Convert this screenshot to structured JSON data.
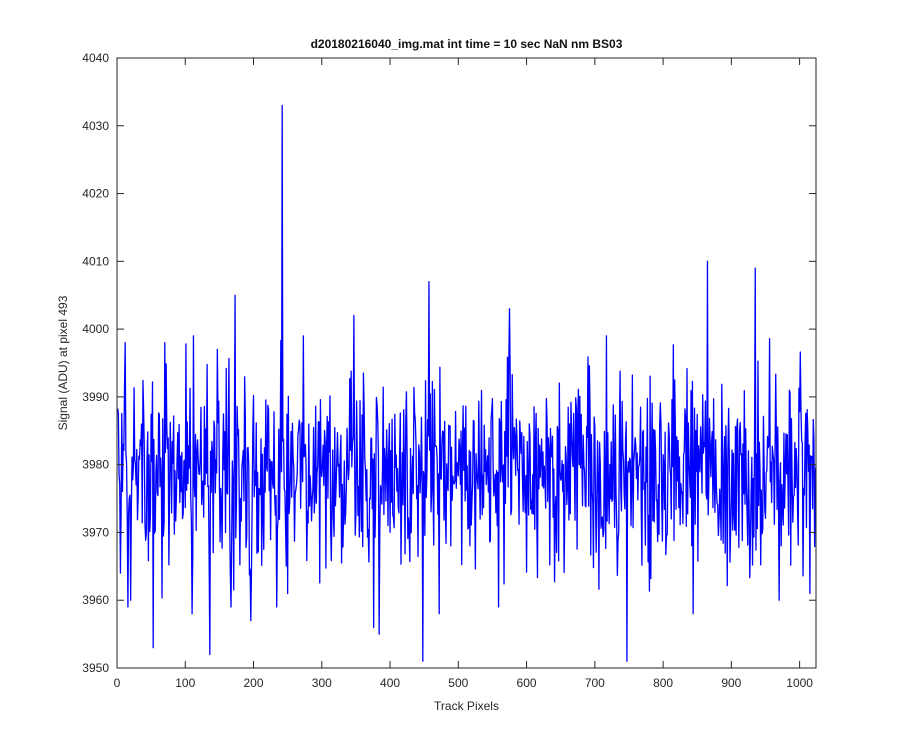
{
  "chart_data": {
    "type": "line",
    "title": "d20180216040_img.mat int time = 10 sec  NaN nm BS03",
    "xlabel": "Track Pixels",
    "ylabel": "Signal (ADU) at pixel 493",
    "xlim": [
      0,
      1024
    ],
    "ylim": [
      3950,
      4040
    ],
    "xticks": [
      0,
      100,
      200,
      300,
      400,
      500,
      600,
      700,
      800,
      900,
      1000
    ],
    "yticks": [
      3950,
      3960,
      3970,
      3980,
      3990,
      4000,
      4010,
      4020,
      4030,
      4040
    ],
    "grid": false,
    "series": [
      {
        "color": "#0000ff",
        "x_start": 1,
        "x_step": 1,
        "y_baseline": 3978.5,
        "y_noise_std": 7.5,
        "annotated_points": [
          {
            "x": 5,
            "y": 3964
          },
          {
            "x": 12,
            "y": 3998
          },
          {
            "x": 20,
            "y": 3960
          },
          {
            "x": 36,
            "y": 3986
          },
          {
            "x": 53,
            "y": 3953
          },
          {
            "x": 70,
            "y": 3998
          },
          {
            "x": 110,
            "y": 3958
          },
          {
            "x": 112,
            "y": 3999
          },
          {
            "x": 136,
            "y": 3952
          },
          {
            "x": 147,
            "y": 3997
          },
          {
            "x": 173,
            "y": 4005
          },
          {
            "x": 196,
            "y": 3957
          },
          {
            "x": 242,
            "y": 4033
          },
          {
            "x": 250,
            "y": 3961
          },
          {
            "x": 347,
            "y": 4002
          },
          {
            "x": 376,
            "y": 3956
          },
          {
            "x": 384,
            "y": 3955
          },
          {
            "x": 448,
            "y": 3951
          },
          {
            "x": 457,
            "y": 4007
          },
          {
            "x": 472,
            "y": 3958
          },
          {
            "x": 575,
            "y": 4003
          },
          {
            "x": 747,
            "y": 3951
          },
          {
            "x": 844,
            "y": 3958
          },
          {
            "x": 865,
            "y": 4010
          },
          {
            "x": 935,
            "y": 4009
          },
          {
            "x": 970,
            "y": 3960
          },
          {
            "x": 1015,
            "y": 3961
          }
        ]
      }
    ]
  }
}
